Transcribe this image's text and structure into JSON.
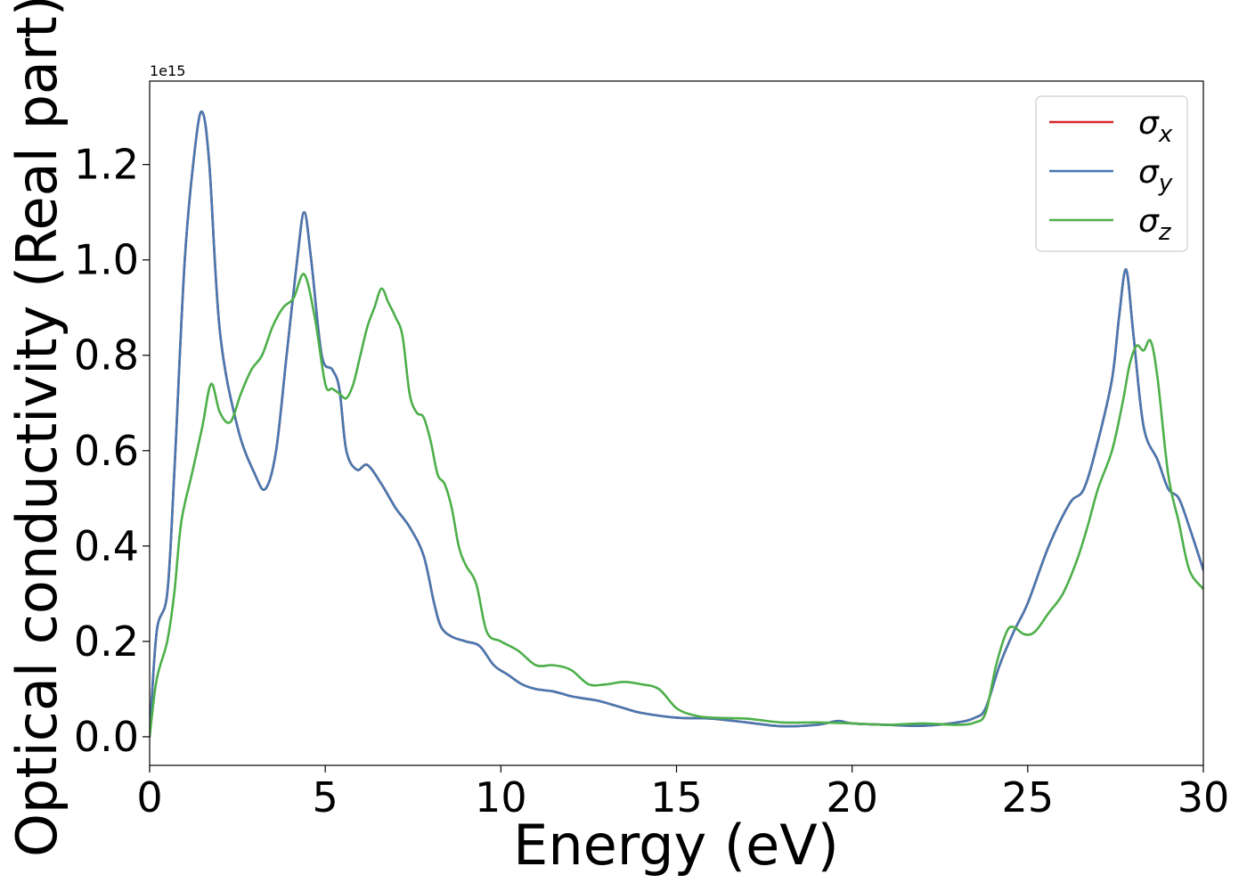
{
  "chart_data": {
    "type": "line",
    "title": "",
    "xlabel": "Energy (eV)",
    "ylabel": "Optical conductivity (Real part)",
    "y_offset_label": "1e15",
    "xlim": [
      0,
      30
    ],
    "ylim": [
      -0.06,
      1.375
    ],
    "x_ticks": [
      0,
      5,
      10,
      15,
      20,
      25,
      30
    ],
    "x_tick_labels": [
      "0",
      "5",
      "10",
      "15",
      "20",
      "25",
      "30"
    ],
    "y_ticks": [
      0.0,
      0.2,
      0.4,
      0.6,
      0.8,
      1.0,
      1.2
    ],
    "y_tick_labels": [
      "0.0",
      "0.2",
      "0.4",
      "0.6",
      "0.8",
      "1.0",
      "1.2"
    ],
    "grid": false,
    "legend_position": "top-right",
    "series": [
      {
        "name": "σx",
        "name_symbol": "σ",
        "name_sub": "x",
        "color": "#d62728",
        "x": [
          0,
          0.2,
          0.5,
          0.7,
          1.0,
          1.3,
          1.5,
          1.7,
          2.0,
          2.5,
          3.0,
          3.3,
          3.6,
          3.9,
          4.2,
          4.4,
          4.6,
          4.9,
          5.2,
          5.4,
          5.6,
          5.9,
          6.2,
          6.6,
          7.0,
          7.4,
          7.8,
          8.1,
          8.3,
          8.6,
          9.0,
          9.4,
          9.8,
          10.2,
          10.6,
          11.0,
          11.5,
          12.0,
          12.4,
          12.8,
          13.5,
          14.0,
          15.0,
          16.0,
          17.0,
          18.0,
          19.0,
          19.6,
          20.0,
          21.0,
          22.0,
          23.0,
          23.5,
          23.8,
          24.2,
          24.6,
          25.0,
          25.6,
          26.2,
          26.6,
          27.0,
          27.4,
          27.6,
          27.8,
          28.0,
          28.3,
          28.7,
          29.0,
          29.3,
          29.6,
          30.0
        ],
        "y": [
          0.0,
          0.22,
          0.3,
          0.55,
          1.0,
          1.24,
          1.31,
          1.2,
          0.85,
          0.65,
          0.55,
          0.52,
          0.6,
          0.8,
          1.0,
          1.1,
          1.0,
          0.8,
          0.77,
          0.73,
          0.6,
          0.56,
          0.57,
          0.53,
          0.48,
          0.44,
          0.38,
          0.28,
          0.23,
          0.21,
          0.2,
          0.19,
          0.15,
          0.13,
          0.11,
          0.1,
          0.095,
          0.085,
          0.08,
          0.075,
          0.06,
          0.05,
          0.04,
          0.038,
          0.03,
          0.022,
          0.025,
          0.033,
          0.028,
          0.025,
          0.023,
          0.03,
          0.04,
          0.06,
          0.15,
          0.22,
          0.28,
          0.4,
          0.49,
          0.52,
          0.62,
          0.75,
          0.88,
          0.98,
          0.85,
          0.65,
          0.58,
          0.52,
          0.5,
          0.44,
          0.35
        ]
      },
      {
        "name": "σy",
        "name_symbol": "σ",
        "name_sub": "y",
        "color": "#4778b0",
        "x": [
          0,
          0.2,
          0.5,
          0.7,
          1.0,
          1.3,
          1.5,
          1.7,
          2.0,
          2.5,
          3.0,
          3.3,
          3.6,
          3.9,
          4.2,
          4.4,
          4.6,
          4.9,
          5.2,
          5.4,
          5.6,
          5.9,
          6.2,
          6.6,
          7.0,
          7.4,
          7.8,
          8.1,
          8.3,
          8.6,
          9.0,
          9.4,
          9.8,
          10.2,
          10.6,
          11.0,
          11.5,
          12.0,
          12.4,
          12.8,
          13.5,
          14.0,
          15.0,
          16.0,
          17.0,
          18.0,
          19.0,
          19.6,
          20.0,
          21.0,
          22.0,
          23.0,
          23.5,
          23.8,
          24.2,
          24.6,
          25.0,
          25.6,
          26.2,
          26.6,
          27.0,
          27.4,
          27.6,
          27.8,
          28.0,
          28.3,
          28.7,
          29.0,
          29.3,
          29.6,
          30.0
        ],
        "y": [
          0.0,
          0.22,
          0.3,
          0.55,
          1.0,
          1.24,
          1.31,
          1.2,
          0.85,
          0.65,
          0.55,
          0.52,
          0.6,
          0.8,
          1.0,
          1.1,
          1.0,
          0.8,
          0.77,
          0.73,
          0.6,
          0.56,
          0.57,
          0.53,
          0.48,
          0.44,
          0.38,
          0.28,
          0.23,
          0.21,
          0.2,
          0.19,
          0.15,
          0.13,
          0.11,
          0.1,
          0.095,
          0.085,
          0.08,
          0.075,
          0.06,
          0.05,
          0.04,
          0.038,
          0.03,
          0.022,
          0.025,
          0.033,
          0.028,
          0.025,
          0.023,
          0.03,
          0.04,
          0.06,
          0.15,
          0.22,
          0.28,
          0.4,
          0.49,
          0.52,
          0.62,
          0.75,
          0.88,
          0.98,
          0.85,
          0.65,
          0.58,
          0.52,
          0.5,
          0.44,
          0.35
        ]
      },
      {
        "name": "σz",
        "name_symbol": "σ",
        "name_sub": "z",
        "color": "#4daf4a",
        "x": [
          0,
          0.2,
          0.5,
          0.7,
          0.9,
          1.2,
          1.5,
          1.75,
          2.0,
          2.3,
          2.6,
          2.9,
          3.2,
          3.5,
          3.8,
          4.1,
          4.4,
          4.7,
          5.0,
          5.2,
          5.4,
          5.6,
          5.8,
          6.0,
          6.2,
          6.4,
          6.6,
          6.8,
          7.0,
          7.2,
          7.4,
          7.6,
          7.8,
          8.0,
          8.2,
          8.4,
          8.6,
          8.8,
          9.0,
          9.3,
          9.6,
          10.0,
          10.5,
          11.0,
          11.5,
          12.0,
          12.5,
          13.0,
          13.5,
          14.0,
          14.5,
          15.0,
          15.5,
          16.0,
          17.0,
          18.0,
          19.0,
          20.0,
          21.0,
          22.0,
          23.0,
          23.5,
          23.8,
          24.1,
          24.4,
          24.6,
          24.9,
          25.2,
          25.6,
          26.0,
          26.4,
          26.7,
          27.0,
          27.4,
          27.7,
          27.9,
          28.1,
          28.3,
          28.5,
          28.7,
          29.0,
          29.3,
          29.6,
          30.0
        ],
        "y": [
          0.0,
          0.12,
          0.2,
          0.3,
          0.45,
          0.55,
          0.65,
          0.74,
          0.68,
          0.66,
          0.72,
          0.77,
          0.8,
          0.86,
          0.9,
          0.92,
          0.97,
          0.88,
          0.74,
          0.73,
          0.72,
          0.71,
          0.74,
          0.8,
          0.86,
          0.9,
          0.94,
          0.91,
          0.88,
          0.84,
          0.72,
          0.68,
          0.67,
          0.62,
          0.55,
          0.53,
          0.48,
          0.4,
          0.36,
          0.32,
          0.22,
          0.2,
          0.18,
          0.15,
          0.15,
          0.14,
          0.11,
          0.11,
          0.115,
          0.11,
          0.1,
          0.06,
          0.045,
          0.04,
          0.038,
          0.03,
          0.03,
          0.028,
          0.025,
          0.028,
          0.025,
          0.03,
          0.05,
          0.15,
          0.22,
          0.23,
          0.215,
          0.22,
          0.26,
          0.3,
          0.37,
          0.44,
          0.52,
          0.6,
          0.7,
          0.78,
          0.82,
          0.81,
          0.83,
          0.75,
          0.55,
          0.45,
          0.35,
          0.31
        ]
      }
    ]
  }
}
